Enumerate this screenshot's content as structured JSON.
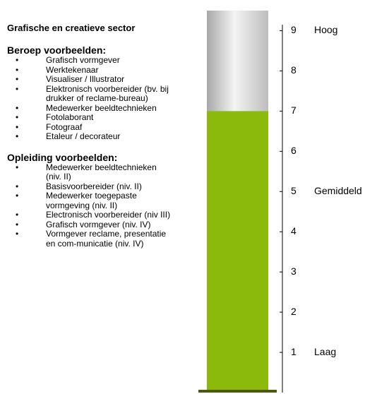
{
  "document": {
    "title": "Grafische en creatieve sector",
    "sections": [
      {
        "heading": "Beroep voorbeelden:",
        "items": [
          "Grafisch vormgever",
          "Werktekenaar",
          "Visualiser / Illustrator",
          "Elektronisch voorbereider (bv. bij drukker of reclame-bureau)",
          "Medewerker beeldtechnieken",
          "Fotolaborant",
          "Fotograaf",
          "Etaleur / decorateur"
        ]
      },
      {
        "heading": "Opleiding voorbeelden:",
        "items": [
          "Medewerker beeldtechnieken (niv. II)",
          "Basisvoorbereider (niv. II)",
          "Medewerker toegepaste vormgeving (niv. II)",
          "Electronisch voorbereider (niv III)",
          "Grafisch vormgever (niv. IV)",
          "Vormgever reclame, presentatie en com-municatie (niv. IV)"
        ]
      }
    ]
  },
  "chart_data": {
    "type": "bar",
    "values": [
      7
    ],
    "color": "#8cba0c",
    "ylim": [
      0,
      9.5
    ],
    "yticks": [
      1,
      2,
      3,
      4,
      5,
      6,
      7,
      8,
      9
    ],
    "annotations": [
      {
        "value": 9,
        "text": "Hoog"
      },
      {
        "value": 5,
        "text": "Gemiddeld"
      },
      {
        "value": 1,
        "text": "Laag"
      }
    ]
  }
}
